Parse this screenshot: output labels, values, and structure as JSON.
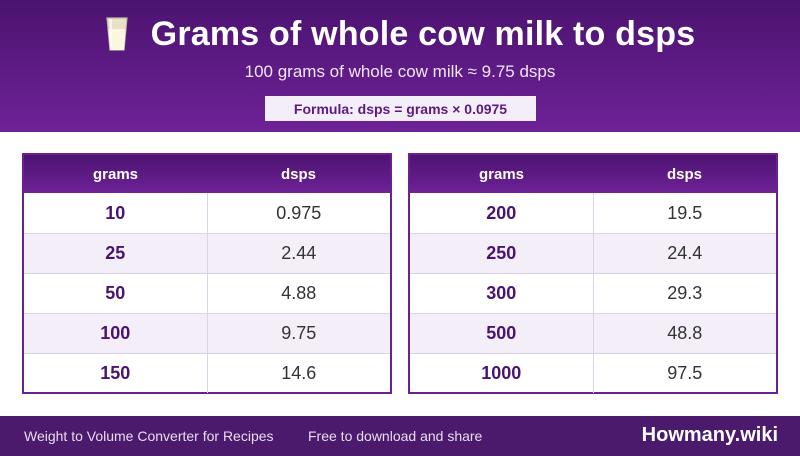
{
  "header": {
    "icon": "milk-glass-icon",
    "title": "Grams of whole cow milk to dsps",
    "subtitle": "100 grams of whole cow milk ≈ 9.75 dsps",
    "formula": "Formula: dsps = grams × 0.0975"
  },
  "tables": [
    {
      "headers": [
        "grams",
        "dsps"
      ],
      "rows": [
        [
          "10",
          "0.975"
        ],
        [
          "25",
          "2.44"
        ],
        [
          "50",
          "4.88"
        ],
        [
          "100",
          "9.75"
        ],
        [
          "150",
          "14.6"
        ]
      ]
    },
    {
      "headers": [
        "grams",
        "dsps"
      ],
      "rows": [
        [
          "200",
          "19.5"
        ],
        [
          "250",
          "24.4"
        ],
        [
          "300",
          "29.3"
        ],
        [
          "500",
          "48.8"
        ],
        [
          "1000",
          "97.5"
        ]
      ]
    }
  ],
  "footer": {
    "left": "Weight to Volume Converter for Recipes",
    "middle": "Free to download and share",
    "brand": "Howmany.wiki"
  },
  "colors": {
    "header_dark": "#4b1370",
    "header_light": "#6e2296",
    "accent_text": "#4b1370",
    "row_alt": "#f3eef8",
    "footer": "#4b1a6c"
  }
}
